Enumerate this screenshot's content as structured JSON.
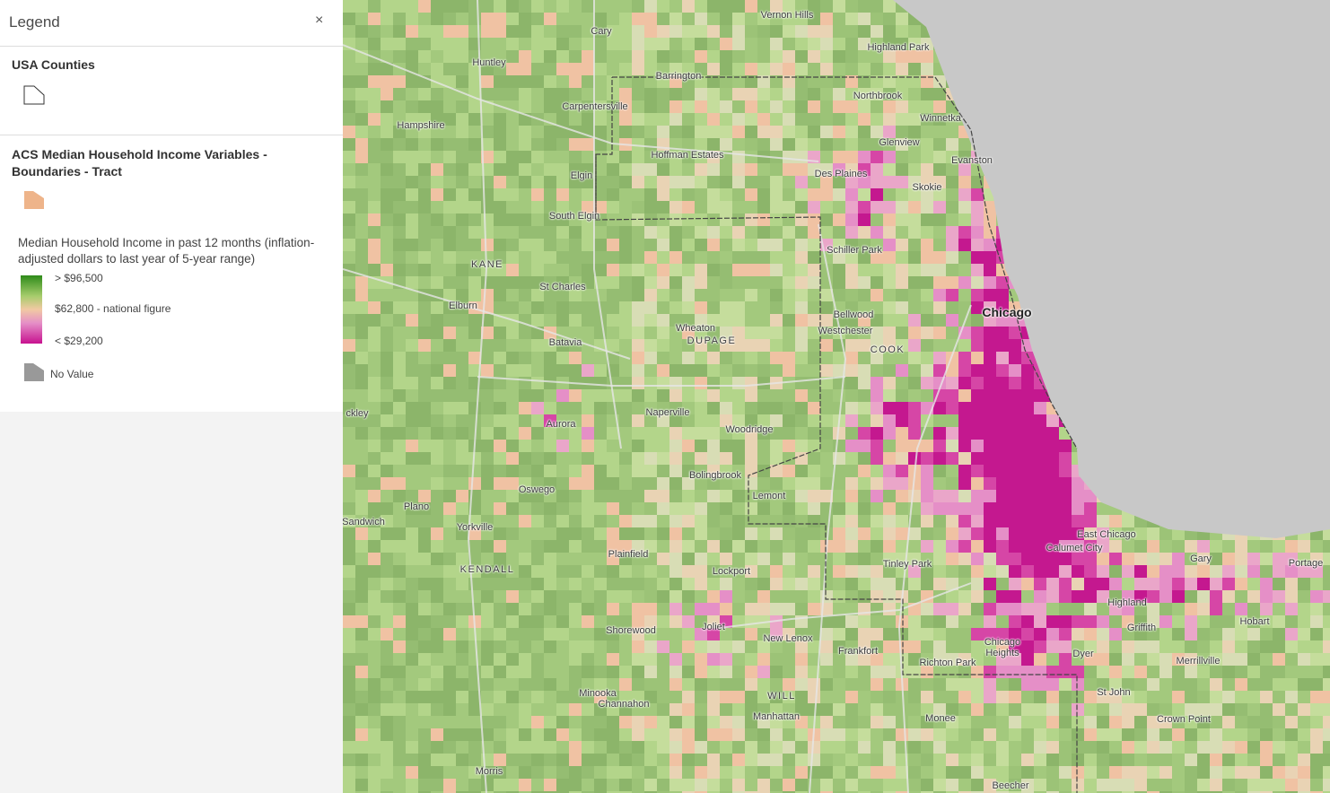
{
  "legend": {
    "title": "Legend",
    "close": "×",
    "layers": [
      {
        "name": "USA Counties"
      },
      {
        "name": "ACS Median Household Income Variables - Boundaries - Tract",
        "field": "Median Household Income in past 12 months (inflation-adjusted dollars to last year of 5-year range)",
        "stops": [
          "> $96,500",
          "$62,800 - national figure",
          "< $29,200"
        ],
        "no_value": "No Value"
      }
    ]
  },
  "map": {
    "labels": [
      "Vernon Hills",
      "Cary",
      "Highland Park",
      "Huntley",
      "Barrington",
      "Northbrook",
      "Hampshire",
      "Carpentersville",
      "Winnetka",
      "Glenview",
      "Hoffman Estates",
      "Evanston",
      "Des Plaines",
      "Elgin",
      "Skokie",
      "South Elgin",
      "Schiller Park",
      "KANE",
      "St Charles",
      "Elburn",
      "Chicago",
      "Bellwood",
      "Wheaton",
      "DUPAGE",
      "Westchester",
      "Batavia",
      "COOK",
      "ckley",
      "Naperville",
      "Aurora",
      "Woodridge",
      "Bolingbrook",
      "Oswego",
      "Lemont",
      "Plano",
      "Sandwich",
      "Yorkville",
      "East Chicago",
      "Calumet City",
      "Plainfield",
      "Gary",
      "Portage",
      "Tinley Park",
      "KENDALL",
      "Lockport",
      "Highland",
      "Hobart",
      "Joliet",
      "Griffith",
      "Shorewood",
      "New Lenox",
      "Chicago Heights",
      "Frankfort",
      "Dyer",
      "Richton Park",
      "Merrillville",
      "St John",
      "WILL",
      "Minooka",
      "Channahon",
      "Monee",
      "Manhattan",
      "Crown Point",
      "Morris",
      "Beecher"
    ]
  }
}
